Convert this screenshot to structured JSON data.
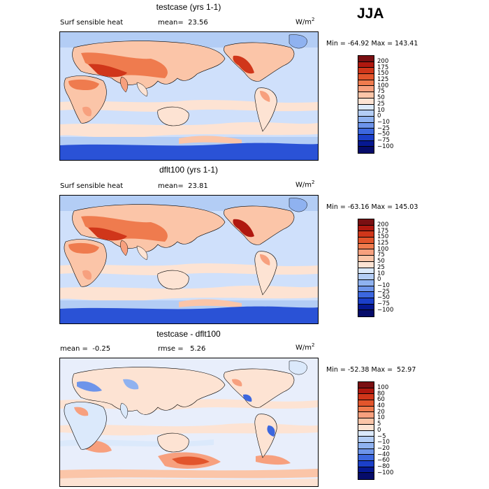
{
  "season": "JJA",
  "units_base": "W/m",
  "units_exp": "2",
  "panels": [
    {
      "title": "testcase (yrs 1-1)",
      "left_text": "Surf sensible heat",
      "right_text": "mean=  23.56",
      "minmax": "Min = -64.92 Max = 143.41",
      "colorbar_labels": [
        "200",
        "175",
        "150",
        "125",
        "100",
        "75",
        "50",
        "25",
        "10",
        "0",
        "−10",
        "−25",
        "−50",
        "−75",
        "−100"
      ]
    },
    {
      "title": "dflt100 (yrs 1-1)",
      "left_text": "Surf sensible heat",
      "right_text": "mean=  23.81",
      "minmax": "Min = -63.16 Max = 145.03",
      "colorbar_labels": [
        "200",
        "175",
        "150",
        "125",
        "100",
        "75",
        "50",
        "25",
        "10",
        "0",
        "−10",
        "−25",
        "−50",
        "−75",
        "−100"
      ]
    },
    {
      "title": "testcase - dflt100",
      "left_text": "mean =  -0.25",
      "right_text": "rmse =   5.26",
      "minmax": "Min = -52.38 Max =  52.97",
      "colorbar_labels": [
        "100",
        "80",
        "60",
        "40",
        "20",
        "10",
        "5",
        "0",
        "−5",
        "−10",
        "−20",
        "−40",
        "−60",
        "−80",
        "−100"
      ]
    }
  ],
  "colors": {
    "scale": [
      "#7a0f12",
      "#b0180f",
      "#d0361a",
      "#e2552c",
      "#ef7b4e",
      "#f7a07e",
      "#fbc5a8",
      "#fde3d3",
      "#dbe9fb",
      "#b3cdf5",
      "#8fb2f0",
      "#6d94ea",
      "#3c67df",
      "#1b3fc9",
      "#061891",
      "#060c6a"
    ],
    "ocean_top": "#cfe0fb",
    "ocean_diff": "#e8eefb",
    "antarctic": "#2a52d6"
  }
}
